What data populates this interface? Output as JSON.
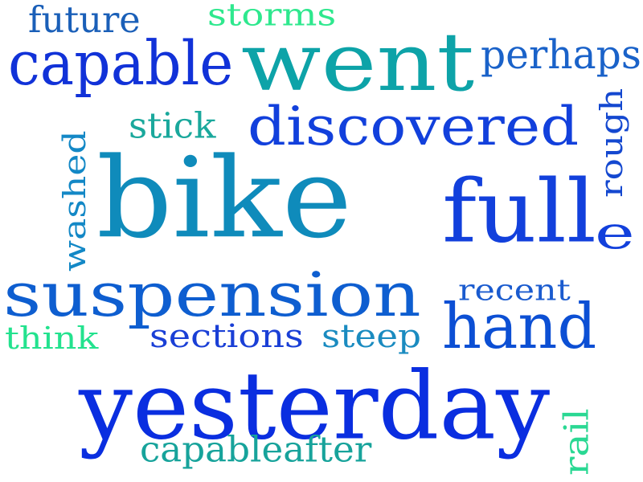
{
  "word_cloud": {
    "words": [
      {
        "id": "future",
        "text": "future",
        "color": "#1a5fb8"
      },
      {
        "id": "storms",
        "text": "storms",
        "color": "#2ee88e"
      },
      {
        "id": "capable",
        "text": "capable",
        "color": "#1132d8"
      },
      {
        "id": "went",
        "text": "went",
        "color": "#0da3a8"
      },
      {
        "id": "perhaps",
        "text": "perhaps",
        "color": "#1a62c9"
      },
      {
        "id": "stick",
        "text": "stick",
        "color": "#1aa89c"
      },
      {
        "id": "discovered",
        "text": "discovered",
        "color": "#1240dc"
      },
      {
        "id": "rough",
        "text": "rough",
        "color": "#1448d0"
      },
      {
        "id": "washed",
        "text": "washed",
        "color": "#1388c6"
      },
      {
        "id": "bike",
        "text": "bike",
        "color": "#0f8bbb"
      },
      {
        "id": "full",
        "text": "full",
        "color": "#1240dc"
      },
      {
        "id": "e",
        "text": "e",
        "color": "#1240dc"
      },
      {
        "id": "suspension",
        "text": "suspension",
        "color": "#0e5ed0"
      },
      {
        "id": "recent",
        "text": "recent",
        "color": "#1a5bcf"
      },
      {
        "id": "think",
        "text": "think",
        "color": "#23e28e"
      },
      {
        "id": "sections",
        "text": "sections",
        "color": "#1a3fd6"
      },
      {
        "id": "steep",
        "text": "steep",
        "color": "#1a8bc0"
      },
      {
        "id": "hand",
        "text": "hand",
        "color": "#0c4fd4"
      },
      {
        "id": "yesterday",
        "text": "yesterday",
        "color": "#0a2ee0"
      },
      {
        "id": "capableafter",
        "text": "capableafter",
        "color": "#17a39b"
      },
      {
        "id": "rail",
        "text": "rail",
        "color": "#2ad893"
      }
    ]
  }
}
